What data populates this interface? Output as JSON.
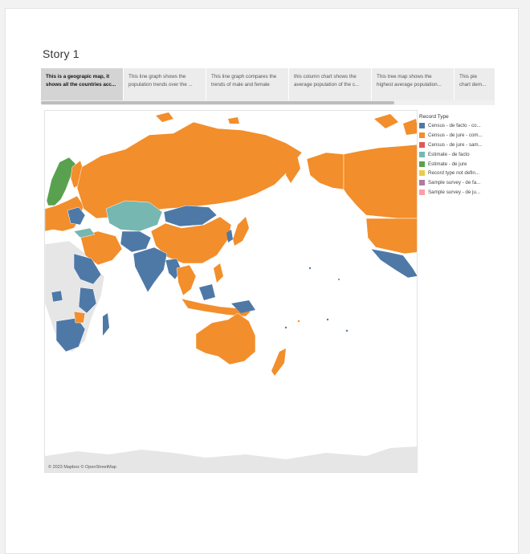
{
  "story": {
    "title": "Story 1"
  },
  "tabs": [
    {
      "line1": "This is a geograpic map, it",
      "line2": "shows all the countries acc..."
    },
    {
      "line1": "This line graph shows the",
      "line2": "population trends over the ..."
    },
    {
      "line1": "This line graph compares the",
      "line2": "trends of male and female"
    },
    {
      "line1": "this column chart shows the",
      "line2": "average population of the c..."
    },
    {
      "line1": "This tree map shows the",
      "line2": "highest average population..."
    },
    {
      "line1": "This pie",
      "line2": "chart dem..."
    }
  ],
  "map": {
    "attribution": "© 2023 Mapbox © OpenStreetMap"
  },
  "legend": {
    "title": "Record Type",
    "items": [
      {
        "label": "Census - de facto - co...",
        "color": "#4e79a7"
      },
      {
        "label": "Census - de jure - com...",
        "color": "#f28e2b"
      },
      {
        "label": "Census - de jure - sam...",
        "color": "#e15759"
      },
      {
        "label": "Estimate - de facto",
        "color": "#76b7b2"
      },
      {
        "label": "Estimate - de jure",
        "color": "#59a14f"
      },
      {
        "label": "Record type not defin...",
        "color": "#edc948"
      },
      {
        "label": "Sample survey - de fa...",
        "color": "#b07aa1"
      },
      {
        "label": "Sample survey - de ju...",
        "color": "#ff9da7"
      }
    ]
  }
}
